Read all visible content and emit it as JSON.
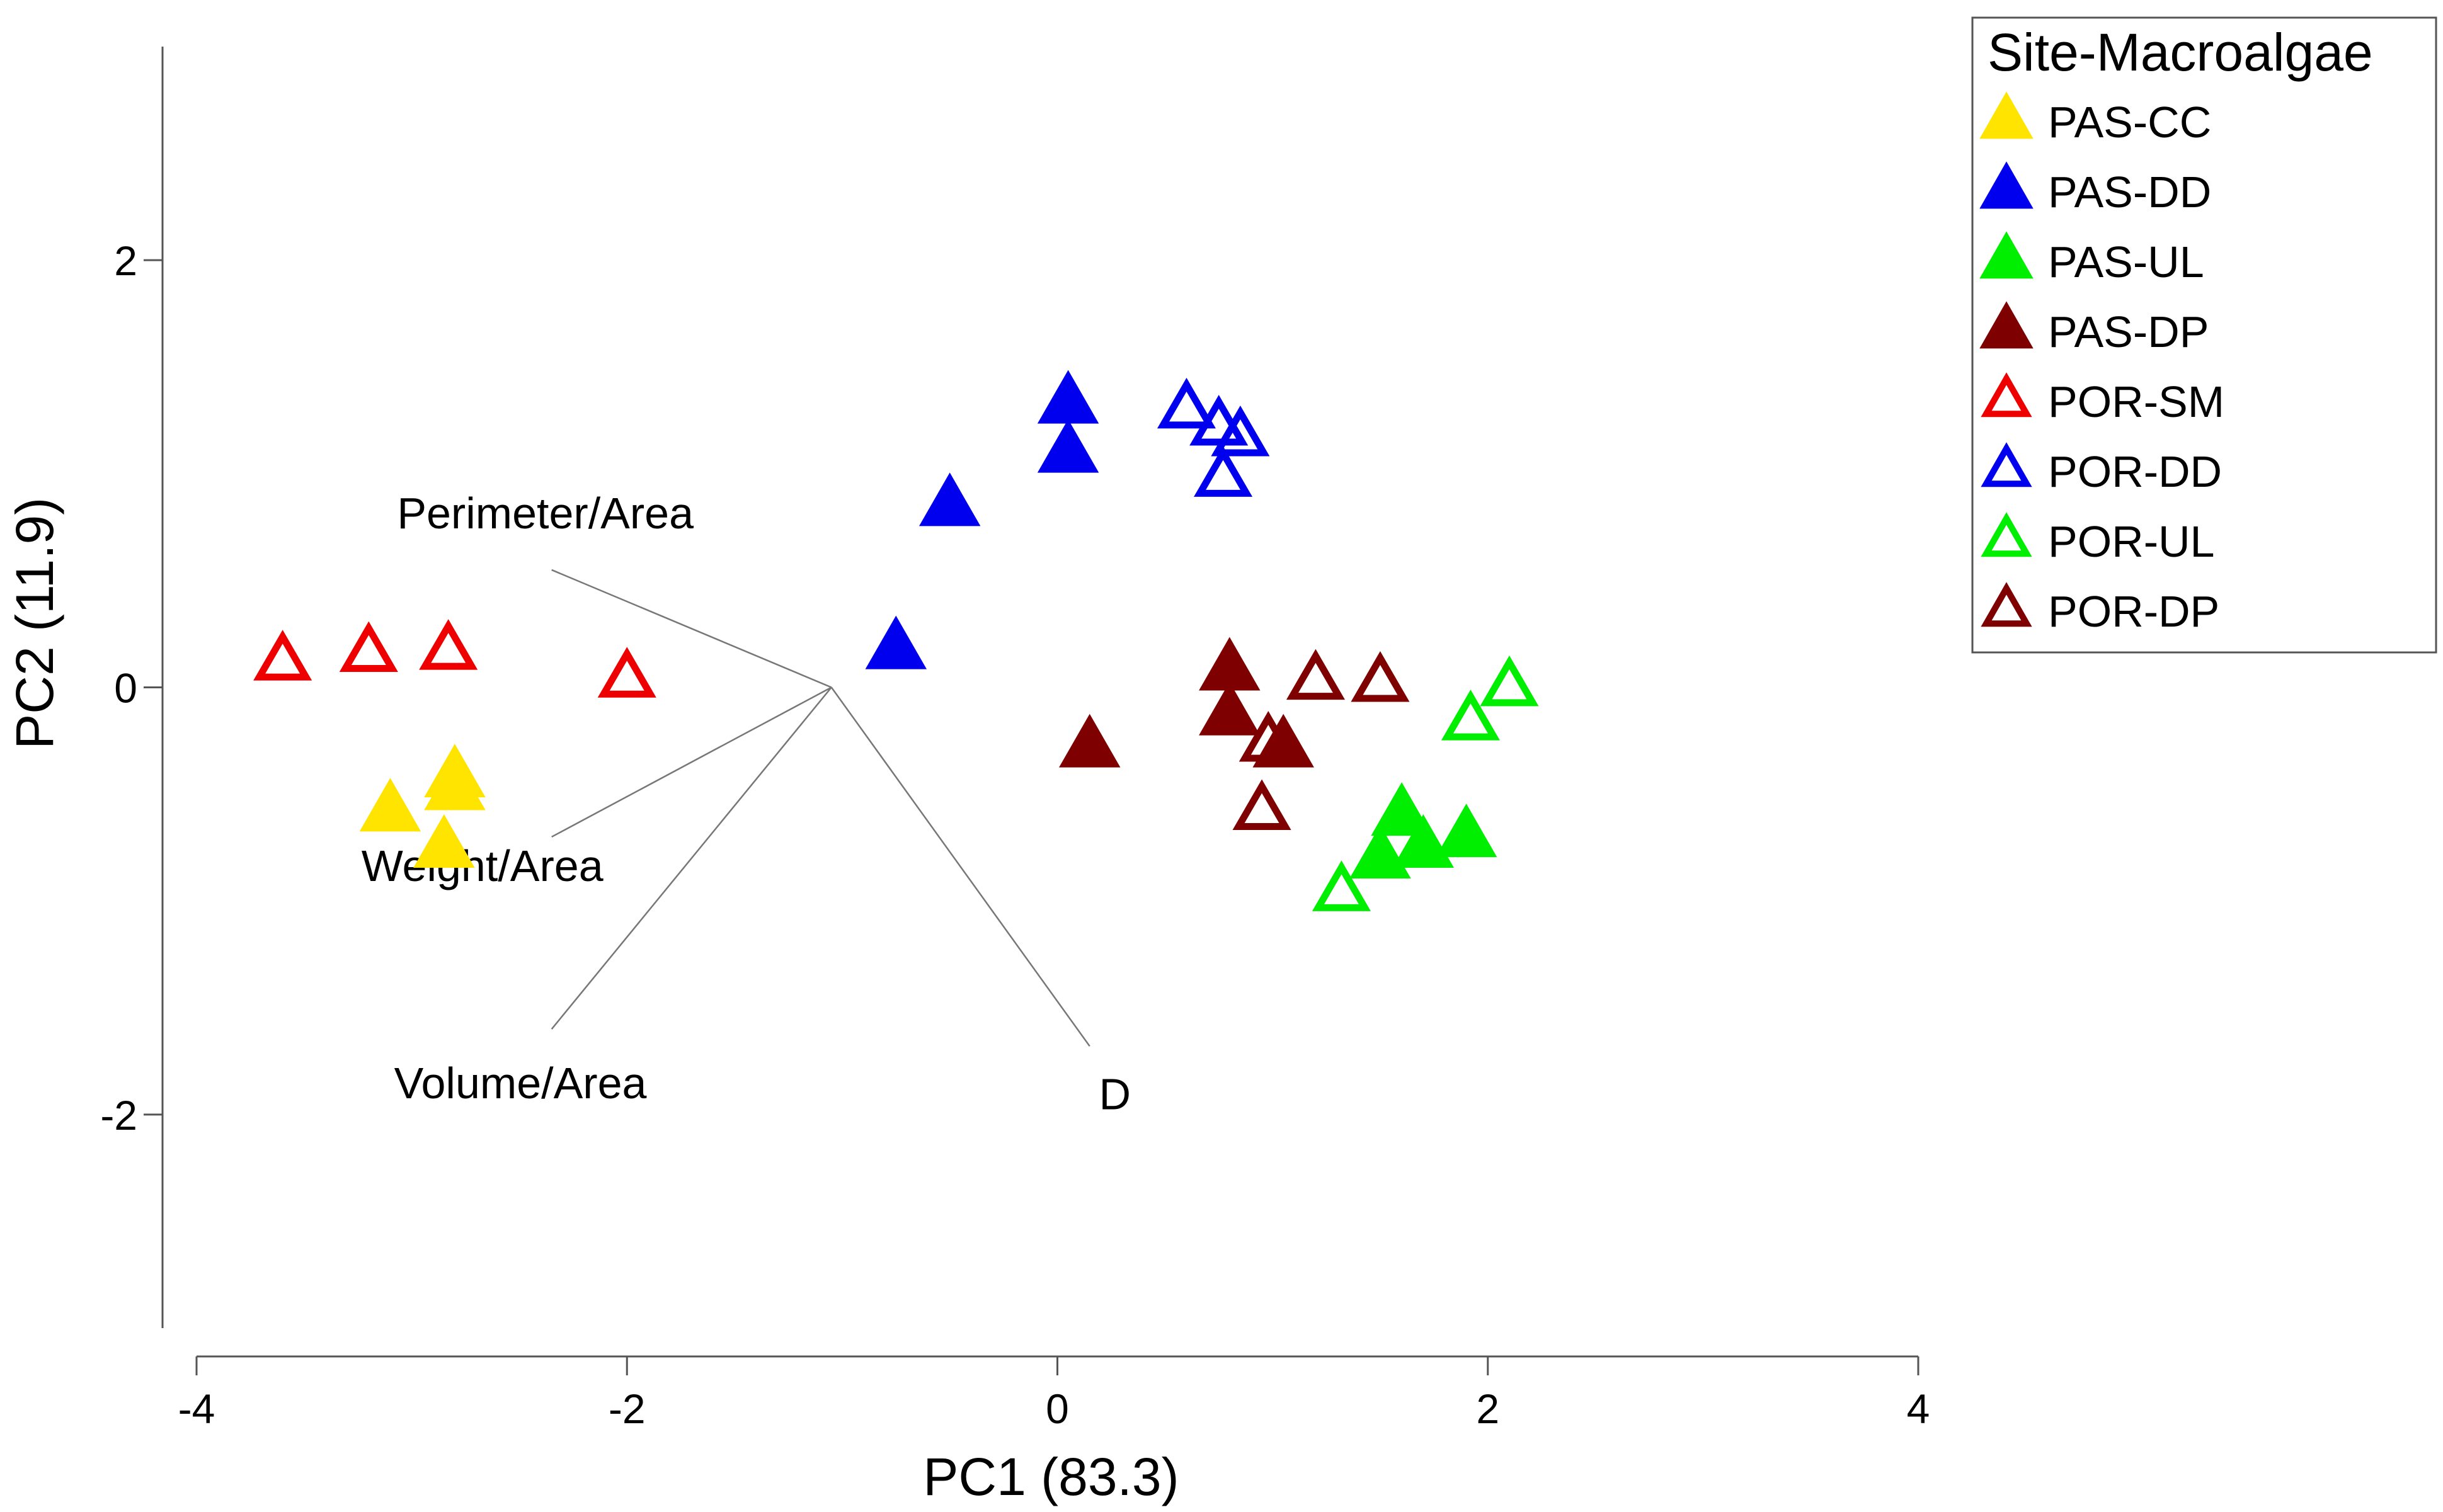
{
  "chart_data": {
    "type": "scatter",
    "title": "",
    "xlabel": "PC1 (83.3)",
    "ylabel": "PC2 (11.9)",
    "xlim": [
      -4,
      4
    ],
    "ylim": [
      -3,
      3
    ],
    "xticks": [
      -4,
      -2,
      0,
      2,
      4
    ],
    "yticks": [
      -2,
      0,
      2
    ],
    "xtick_labels": [
      "-4",
      "-2",
      "0",
      "2",
      "4"
    ],
    "ytick_labels": [
      "-2",
      "0",
      "2"
    ],
    "grid": false,
    "legend": {
      "title": "Site-Macroalgae",
      "position": "top-right"
    },
    "series": [
      {
        "name": "PAS-CC",
        "color": "#FFE400",
        "filled": true,
        "points": [
          [
            -3.1,
            -0.58
          ],
          [
            -2.8,
            -0.42
          ],
          [
            -2.8,
            -0.48
          ],
          [
            -2.85,
            -0.75
          ]
        ]
      },
      {
        "name": "PAS-DD",
        "color": "#0000EE",
        "filled": true,
        "points": [
          [
            0.05,
            1.33
          ],
          [
            0.05,
            1.1
          ],
          [
            -0.5,
            0.85
          ],
          [
            -0.75,
            0.18
          ]
        ]
      },
      {
        "name": "PAS-UL",
        "color": "#00EE00",
        "filled": true,
        "points": [
          [
            1.6,
            -0.6
          ],
          [
            1.5,
            -0.8
          ],
          [
            1.7,
            -0.75
          ],
          [
            1.9,
            -0.7
          ]
        ]
      },
      {
        "name": "PAS-DP",
        "color": "#7F0000",
        "filled": true,
        "points": [
          [
            0.8,
            0.08
          ],
          [
            0.8,
            -0.13
          ],
          [
            1.05,
            -0.28
          ],
          [
            0.15,
            -0.28
          ]
        ]
      },
      {
        "name": "POR-SM",
        "color": "#EE0000",
        "filled": false,
        "points": [
          [
            -3.6,
            0.12
          ],
          [
            -3.2,
            0.16
          ],
          [
            -2.83,
            0.17
          ],
          [
            -2.0,
            0.04
          ]
        ]
      },
      {
        "name": "POR-DD",
        "color": "#0000EE",
        "filled": false,
        "points": [
          [
            0.6,
            1.3
          ],
          [
            0.75,
            1.22
          ],
          [
            0.85,
            1.17
          ],
          [
            0.77,
            0.98
          ]
        ]
      },
      {
        "name": "POR-UL",
        "color": "#00EE00",
        "filled": false,
        "points": [
          [
            2.1,
            0.0
          ],
          [
            1.92,
            -0.16
          ],
          [
            1.32,
            -0.96
          ]
        ]
      },
      {
        "name": "POR-DP",
        "color": "#7F0000",
        "filled": false,
        "points": [
          [
            1.2,
            0.03
          ],
          [
            1.5,
            0.02
          ],
          [
            0.98,
            -0.26
          ],
          [
            0.95,
            -0.58
          ]
        ]
      }
    ],
    "vectors": {
      "origin": [
        -1.05,
        0.0
      ],
      "items": [
        {
          "label": "Perimeter/Area",
          "tip": [
            -2.35,
            0.55
          ]
        },
        {
          "label": "Weight/Area",
          "tip": [
            -2.35,
            -0.7
          ]
        },
        {
          "label": "Volume/Area",
          "tip": [
            -2.35,
            -1.6
          ]
        },
        {
          "label": "D",
          "tip": [
            0.15,
            -1.68
          ]
        }
      ]
    }
  }
}
